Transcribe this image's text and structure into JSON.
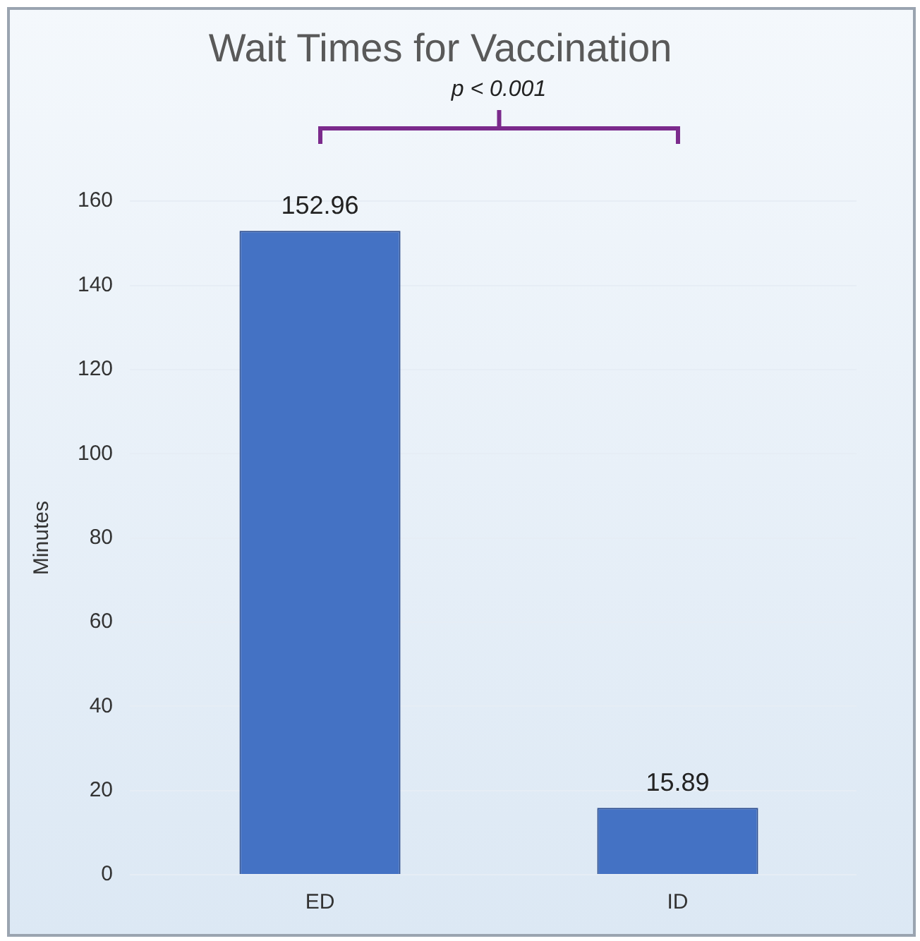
{
  "chart_data": {
    "type": "bar",
    "title": "Wait Times for Vaccination",
    "ylabel": "Minutes",
    "categories": [
      "ED",
      "ID"
    ],
    "values": [
      152.96,
      15.89
    ],
    "color": "#4472c4",
    "ylim": [
      0,
      160
    ],
    "yticks": [
      0,
      20,
      40,
      60,
      80,
      100,
      120,
      140,
      160
    ],
    "grid": "y",
    "legend": false,
    "data_labels": true,
    "annotations": [
      "p < 0.001"
    ]
  }
}
